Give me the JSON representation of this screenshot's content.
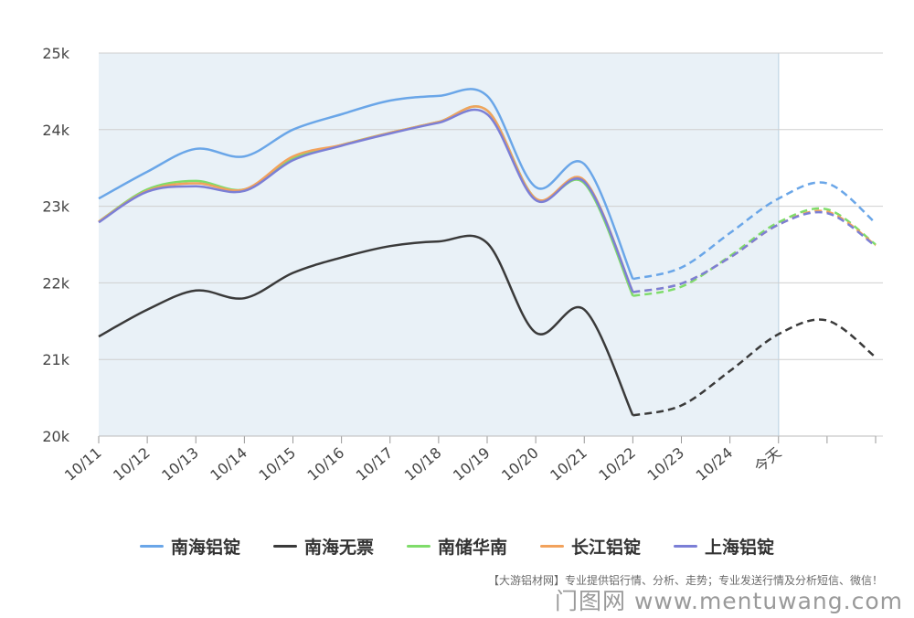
{
  "chart_data": {
    "type": "line",
    "categories": [
      "10/11",
      "10/12",
      "10/13",
      "10/14",
      "10/15",
      "10/16",
      "10/17",
      "10/18",
      "10/19",
      "10/20",
      "10/21",
      "10/22",
      "10/23",
      "10/24",
      "今天",
      "",
      ""
    ],
    "forecast_start_index": 11,
    "today_index": 14,
    "ylim": [
      20000,
      25000
    ],
    "yticks": [
      {
        "value": 20000,
        "label": "20k"
      },
      {
        "value": 21000,
        "label": "21k"
      },
      {
        "value": 22000,
        "label": "22k"
      },
      {
        "value": 23000,
        "label": "23k"
      },
      {
        "value": 24000,
        "label": "24k"
      },
      {
        "value": 25000,
        "label": "25k"
      }
    ],
    "grid": true,
    "legend_position": "bottom",
    "series": [
      {
        "name": "南海铝锭",
        "color": "#6aa6e8",
        "values": [
          23100,
          23450,
          23750,
          23650,
          24000,
          24200,
          24380,
          24440,
          24440,
          23250,
          23550,
          22050,
          22200,
          22650,
          23100,
          23300,
          22780
        ]
      },
      {
        "name": "南海无票",
        "color": "#3a3a3a",
        "values": [
          21300,
          21650,
          21900,
          21800,
          22130,
          22330,
          22480,
          22540,
          22520,
          21350,
          21650,
          20270,
          20400,
          20850,
          21330,
          21510,
          21030
        ]
      },
      {
        "name": "南储华南",
        "color": "#7fdc6a",
        "values": [
          22800,
          23220,
          23330,
          23220,
          23620,
          23800,
          23960,
          24100,
          24250,
          23100,
          23300,
          21830,
          21950,
          22350,
          22790,
          22960,
          22500
        ]
      },
      {
        "name": "长江铝锭",
        "color": "#f2a25c",
        "values": [
          22800,
          23200,
          23300,
          23220,
          23650,
          23800,
          23960,
          24100,
          24250,
          23100,
          23340,
          21880,
          21990,
          22330,
          22760,
          22930,
          22490
        ]
      },
      {
        "name": "上海铝锭",
        "color": "#7b7fd6",
        "values": [
          22790,
          23190,
          23260,
          23200,
          23600,
          23790,
          23950,
          24090,
          24200,
          23080,
          23320,
          21880,
          21990,
          22330,
          22760,
          22910,
          22480
        ]
      }
    ]
  },
  "footer": {
    "note": "【大游铝材网】专业提供铝行情、分析、走势；专业发送行情及分析短信、微信！",
    "site": "门图网 www.mentuwang.com"
  }
}
